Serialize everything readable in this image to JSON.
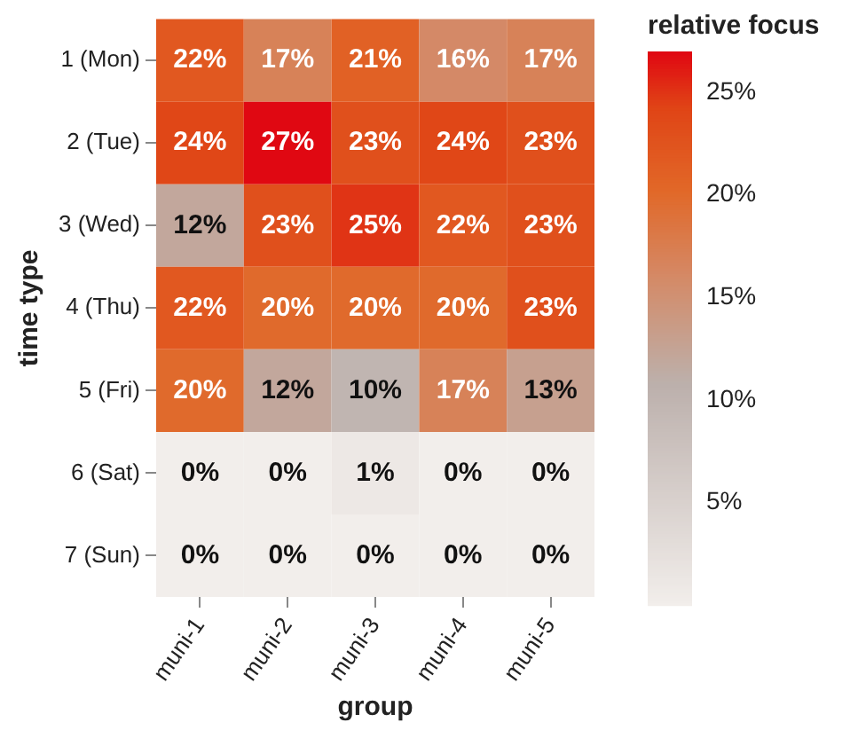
{
  "chart_data": {
    "type": "heatmap",
    "xlabel": "group",
    "ylabel": "time type",
    "legend_title": "relative focus",
    "categories": [
      "muni-1",
      "muni-2",
      "muni-3",
      "muni-4",
      "muni-5"
    ],
    "y_categories": [
      "1 (Mon)",
      "2 (Tue)",
      "3 (Wed)",
      "4 (Thu)",
      "5 (Fri)",
      "6 (Sat)",
      "7 (Sun)"
    ],
    "cells": [
      [
        22,
        17,
        21,
        16,
        17
      ],
      [
        24,
        27,
        23,
        24,
        23
      ],
      [
        12,
        23,
        25,
        22,
        23
      ],
      [
        22,
        20,
        20,
        20,
        23
      ],
      [
        20,
        12,
        10,
        17,
        13
      ],
      [
        0,
        0,
        1,
        0,
        0
      ],
      [
        0,
        0,
        0,
        0,
        0
      ]
    ],
    "cell_labels": [
      [
        "22%",
        "17%",
        "21%",
        "16%",
        "17%"
      ],
      [
        "24%",
        "27%",
        "23%",
        "24%",
        "23%"
      ],
      [
        "12%",
        "23%",
        "25%",
        "22%",
        "23%"
      ],
      [
        "22%",
        "20%",
        "20%",
        "20%",
        "23%"
      ],
      [
        "20%",
        "12%",
        "10%",
        "17%",
        "13%"
      ],
      [
        "0%",
        "0%",
        "1%",
        "0%",
        "0%"
      ],
      [
        "0%",
        "0%",
        "0%",
        "0%",
        "0%"
      ]
    ],
    "clim": [
      0,
      27
    ],
    "cticks": [
      {
        "value": 5,
        "label": "5%"
      },
      {
        "value": 10,
        "label": "10%"
      },
      {
        "value": 15,
        "label": "15%"
      },
      {
        "value": 20,
        "label": "20%"
      },
      {
        "value": 25,
        "label": "25%"
      }
    ]
  }
}
